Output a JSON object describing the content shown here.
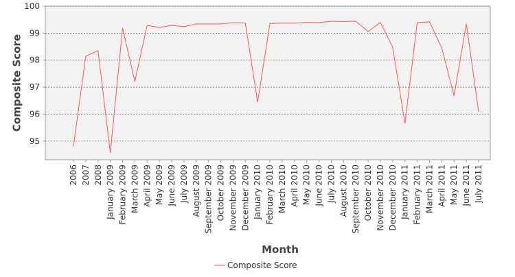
{
  "chart_data": {
    "type": "line",
    "x_label": "Month",
    "y_label": "Composite Score",
    "categories": [
      "2006",
      "2007",
      "2008",
      "January 2009",
      "February 2009",
      "March 2009",
      "April 2009",
      "May 2009",
      "June 2009",
      "July 2009",
      "August 2009",
      "September 2009",
      "October 2009",
      "November 2009",
      "December 2009",
      "January 2010",
      "February 2010",
      "March 2010",
      "April 2010",
      "May 2010",
      "June 2010",
      "July 2010",
      "August 2010",
      "September 2010",
      "October 2010",
      "November 2010",
      "December 2010",
      "January 2011",
      "February 2011",
      "March 2011",
      "April 2011",
      "May 2011",
      "June 2011",
      "July 2011"
    ],
    "series": [
      {
        "name": "Composite Score",
        "color": "#ff5555",
        "values": [
          94.82,
          98.15,
          98.35,
          94.57,
          99.19,
          97.21,
          99.29,
          99.21,
          99.29,
          99.24,
          99.34,
          99.34,
          99.34,
          99.39,
          99.37,
          96.45,
          99.36,
          99.37,
          99.37,
          99.4,
          99.39,
          99.44,
          99.43,
          99.44,
          99.06,
          99.4,
          98.48,
          95.66,
          99.39,
          99.42,
          98.45,
          96.68,
          99.35,
          96.09
        ]
      }
    ],
    "ylim": [
      94.31,
      100
    ],
    "yticks": [
      95,
      96,
      97,
      98,
      99,
      100
    ],
    "grid": true,
    "legend": "bottom"
  }
}
